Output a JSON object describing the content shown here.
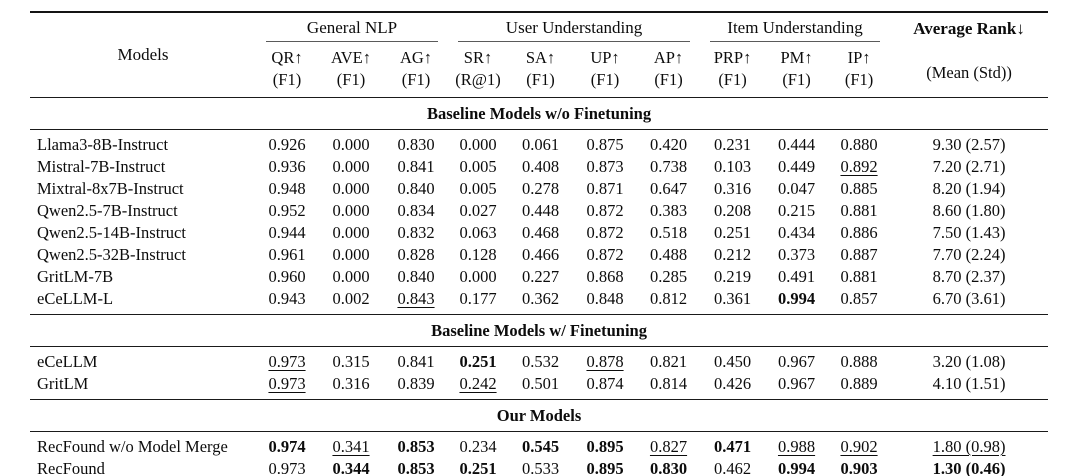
{
  "table": {
    "header": {
      "models_label": "Models",
      "groups": [
        {
          "label": "General NLP",
          "span": 3
        },
        {
          "label": "User Understanding",
          "span": 4
        },
        {
          "label": "Item Understanding",
          "span": 3
        }
      ],
      "metrics": [
        {
          "name": "QR↑",
          "measure": "(F1)"
        },
        {
          "name": "AVE↑",
          "measure": "(F1)"
        },
        {
          "name": "AG↑",
          "measure": "(F1)"
        },
        {
          "name": "SR↑",
          "measure": "(R@1)"
        },
        {
          "name": "SA↑",
          "measure": "(F1)"
        },
        {
          "name": "UP↑",
          "measure": "(F1)"
        },
        {
          "name": "AP↑",
          "measure": "(F1)"
        },
        {
          "name": "PRP↑",
          "measure": "(F1)"
        },
        {
          "name": "PM↑",
          "measure": "(F1)"
        },
        {
          "name": "IP↑",
          "measure": "(F1)"
        }
      ],
      "avg_rank_label": "Average Rank↓",
      "avg_rank_measure": "(Mean (Std))"
    },
    "sections": [
      {
        "title": "Baseline Models w/o Finetuning",
        "rows": [
          {
            "model": "Llama3-8B-Instruct",
            "cells": [
              {
                "v": "0.926",
                "s": "n"
              },
              {
                "v": "0.000",
                "s": "n"
              },
              {
                "v": "0.830",
                "s": "n"
              },
              {
                "v": "0.000",
                "s": "n"
              },
              {
                "v": "0.061",
                "s": "n"
              },
              {
                "v": "0.875",
                "s": "n"
              },
              {
                "v": "0.420",
                "s": "n"
              },
              {
                "v": "0.231",
                "s": "n"
              },
              {
                "v": "0.444",
                "s": "n"
              },
              {
                "v": "0.880",
                "s": "n"
              },
              {
                "v": "9.30 (2.57)",
                "s": "n"
              }
            ]
          },
          {
            "model": "Mistral-7B-Instruct",
            "cells": [
              {
                "v": "0.936",
                "s": "n"
              },
              {
                "v": "0.000",
                "s": "n"
              },
              {
                "v": "0.841",
                "s": "n"
              },
              {
                "v": "0.005",
                "s": "n"
              },
              {
                "v": "0.408",
                "s": "n"
              },
              {
                "v": "0.873",
                "s": "n"
              },
              {
                "v": "0.738",
                "s": "n"
              },
              {
                "v": "0.103",
                "s": "n"
              },
              {
                "v": "0.449",
                "s": "n"
              },
              {
                "v": "0.892",
                "s": "u"
              },
              {
                "v": "7.20 (2.71)",
                "s": "n"
              }
            ]
          },
          {
            "model": "Mixtral-8x7B-Instruct",
            "cells": [
              {
                "v": "0.948",
                "s": "n"
              },
              {
                "v": "0.000",
                "s": "n"
              },
              {
                "v": "0.840",
                "s": "n"
              },
              {
                "v": "0.005",
                "s": "n"
              },
              {
                "v": "0.278",
                "s": "n"
              },
              {
                "v": "0.871",
                "s": "n"
              },
              {
                "v": "0.647",
                "s": "n"
              },
              {
                "v": "0.316",
                "s": "n"
              },
              {
                "v": "0.047",
                "s": "n"
              },
              {
                "v": "0.885",
                "s": "n"
              },
              {
                "v": "8.20 (1.94)",
                "s": "n"
              }
            ]
          },
          {
            "model": "Qwen2.5-7B-Instruct",
            "cells": [
              {
                "v": "0.952",
                "s": "n"
              },
              {
                "v": "0.000",
                "s": "n"
              },
              {
                "v": "0.834",
                "s": "n"
              },
              {
                "v": "0.027",
                "s": "n"
              },
              {
                "v": "0.448",
                "s": "n"
              },
              {
                "v": "0.872",
                "s": "n"
              },
              {
                "v": "0.383",
                "s": "n"
              },
              {
                "v": "0.208",
                "s": "n"
              },
              {
                "v": "0.215",
                "s": "n"
              },
              {
                "v": "0.881",
                "s": "n"
              },
              {
                "v": "8.60 (1.80)",
                "s": "n"
              }
            ]
          },
          {
            "model": "Qwen2.5-14B-Instruct",
            "cells": [
              {
                "v": "0.944",
                "s": "n"
              },
              {
                "v": "0.000",
                "s": "n"
              },
              {
                "v": "0.832",
                "s": "n"
              },
              {
                "v": "0.063",
                "s": "n"
              },
              {
                "v": "0.468",
                "s": "n"
              },
              {
                "v": "0.872",
                "s": "n"
              },
              {
                "v": "0.518",
                "s": "n"
              },
              {
                "v": "0.251",
                "s": "n"
              },
              {
                "v": "0.434",
                "s": "n"
              },
              {
                "v": "0.886",
                "s": "n"
              },
              {
                "v": "7.50 (1.43)",
                "s": "n"
              }
            ]
          },
          {
            "model": "Qwen2.5-32B-Instruct",
            "cells": [
              {
                "v": "0.961",
                "s": "n"
              },
              {
                "v": "0.000",
                "s": "n"
              },
              {
                "v": "0.828",
                "s": "n"
              },
              {
                "v": "0.128",
                "s": "n"
              },
              {
                "v": "0.466",
                "s": "n"
              },
              {
                "v": "0.872",
                "s": "n"
              },
              {
                "v": "0.488",
                "s": "n"
              },
              {
                "v": "0.212",
                "s": "n"
              },
              {
                "v": "0.373",
                "s": "n"
              },
              {
                "v": "0.887",
                "s": "n"
              },
              {
                "v": "7.70 (2.24)",
                "s": "n"
              }
            ]
          },
          {
            "model": "GritLM-7B",
            "cells": [
              {
                "v": "0.960",
                "s": "n"
              },
              {
                "v": "0.000",
                "s": "n"
              },
              {
                "v": "0.840",
                "s": "n"
              },
              {
                "v": "0.000",
                "s": "n"
              },
              {
                "v": "0.227",
                "s": "n"
              },
              {
                "v": "0.868",
                "s": "n"
              },
              {
                "v": "0.285",
                "s": "n"
              },
              {
                "v": "0.219",
                "s": "n"
              },
              {
                "v": "0.491",
                "s": "n"
              },
              {
                "v": "0.881",
                "s": "n"
              },
              {
                "v": "8.70 (2.37)",
                "s": "n"
              }
            ]
          },
          {
            "model": "eCeLLM-L",
            "cells": [
              {
                "v": "0.943",
                "s": "n"
              },
              {
                "v": "0.002",
                "s": "n"
              },
              {
                "v": "0.843",
                "s": "u"
              },
              {
                "v": "0.177",
                "s": "n"
              },
              {
                "v": "0.362",
                "s": "n"
              },
              {
                "v": "0.848",
                "s": "n"
              },
              {
                "v": "0.812",
                "s": "n"
              },
              {
                "v": "0.361",
                "s": "n"
              },
              {
                "v": "0.994",
                "s": "b"
              },
              {
                "v": "0.857",
                "s": "n"
              },
              {
                "v": "6.70 (3.61)",
                "s": "n"
              }
            ]
          }
        ]
      },
      {
        "title": "Baseline Models w/ Finetuning",
        "rows": [
          {
            "model": "eCeLLM",
            "cells": [
              {
                "v": "0.973",
                "s": "u"
              },
              {
                "v": "0.315",
                "s": "n"
              },
              {
                "v": "0.841",
                "s": "n"
              },
              {
                "v": "0.251",
                "s": "b"
              },
              {
                "v": "0.532",
                "s": "n"
              },
              {
                "v": "0.878",
                "s": "u"
              },
              {
                "v": "0.821",
                "s": "n"
              },
              {
                "v": "0.450",
                "s": "n"
              },
              {
                "v": "0.967",
                "s": "n"
              },
              {
                "v": "0.888",
                "s": "n"
              },
              {
                "v": "3.20 (1.08)",
                "s": "n"
              }
            ]
          },
          {
            "model": "GritLM",
            "cells": [
              {
                "v": "0.973",
                "s": "u"
              },
              {
                "v": "0.316",
                "s": "n"
              },
              {
                "v": "0.839",
                "s": "n"
              },
              {
                "v": "0.242",
                "s": "u"
              },
              {
                "v": "0.501",
                "s": "n"
              },
              {
                "v": "0.874",
                "s": "n"
              },
              {
                "v": "0.814",
                "s": "n"
              },
              {
                "v": "0.426",
                "s": "n"
              },
              {
                "v": "0.967",
                "s": "n"
              },
              {
                "v": "0.889",
                "s": "n"
              },
              {
                "v": "4.10 (1.51)",
                "s": "n"
              }
            ]
          }
        ]
      },
      {
        "title": "Our Models",
        "rows": [
          {
            "model": "RecFound w/o Model Merge",
            "cells": [
              {
                "v": "0.974",
                "s": "b"
              },
              {
                "v": "0.341",
                "s": "u"
              },
              {
                "v": "0.853",
                "s": "b"
              },
              {
                "v": "0.234",
                "s": "n"
              },
              {
                "v": "0.545",
                "s": "b"
              },
              {
                "v": "0.895",
                "s": "b"
              },
              {
                "v": "0.827",
                "s": "u"
              },
              {
                "v": "0.471",
                "s": "b"
              },
              {
                "v": "0.988",
                "s": "u"
              },
              {
                "v": "0.902",
                "s": "u"
              },
              {
                "v": "1.80 (0.98)",
                "s": "u"
              }
            ]
          },
          {
            "model": "RecFound",
            "cells": [
              {
                "v": "0.973",
                "s": "u"
              },
              {
                "v": "0.344",
                "s": "b"
              },
              {
                "v": "0.853",
                "s": "b"
              },
              {
                "v": "0.251",
                "s": "b"
              },
              {
                "v": "0.533",
                "s": "u"
              },
              {
                "v": "0.895",
                "s": "b"
              },
              {
                "v": "0.830",
                "s": "b"
              },
              {
                "v": "0.462",
                "s": "u"
              },
              {
                "v": "0.994",
                "s": "b"
              },
              {
                "v": "0.903",
                "s": "b"
              },
              {
                "v": "1.30 (0.46)",
                "s": "b"
              }
            ]
          }
        ]
      }
    ]
  }
}
